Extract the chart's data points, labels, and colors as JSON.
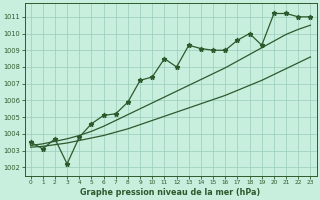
{
  "xlabel": "Graphe pression niveau de la mer (hPa)",
  "bg_color": "#c8eedd",
  "grid_color": "#99ccbb",
  "line_color": "#2d5a2d",
  "x_values": [
    0,
    1,
    2,
    3,
    4,
    5,
    6,
    7,
    8,
    9,
    10,
    11,
    12,
    13,
    14,
    15,
    16,
    17,
    18,
    19,
    20,
    21,
    22,
    23
  ],
  "y_main": [
    1003.5,
    1003.1,
    1003.7,
    1002.2,
    1003.8,
    1004.6,
    1005.1,
    1005.2,
    1005.9,
    1007.2,
    1007.4,
    1008.5,
    1008.0,
    1009.3,
    1009.1,
    1009.0,
    1009.0,
    1009.6,
    1010.0,
    1009.3,
    1011.2,
    1011.2,
    1011.0,
    1011.0
  ],
  "y_smooth1": [
    1003.2,
    1003.25,
    1003.35,
    1003.45,
    1003.6,
    1003.75,
    1003.9,
    1004.1,
    1004.3,
    1004.55,
    1004.8,
    1005.05,
    1005.3,
    1005.55,
    1005.8,
    1006.05,
    1006.3,
    1006.6,
    1006.9,
    1007.2,
    1007.55,
    1007.9,
    1008.25,
    1008.6
  ],
  "y_smooth2": [
    1003.3,
    1003.4,
    1003.55,
    1003.7,
    1003.9,
    1004.15,
    1004.45,
    1004.8,
    1005.15,
    1005.5,
    1005.85,
    1006.2,
    1006.55,
    1006.9,
    1007.25,
    1007.6,
    1007.95,
    1008.35,
    1008.75,
    1009.15,
    1009.55,
    1009.95,
    1010.25,
    1010.5
  ],
  "ylim_min": 1001.5,
  "ylim_max": 1011.8,
  "yticks": [
    1002,
    1003,
    1004,
    1005,
    1006,
    1007,
    1008,
    1009,
    1010,
    1011
  ],
  "xlim_min": -0.5,
  "xlim_max": 23.5,
  "xticks": [
    0,
    1,
    2,
    3,
    4,
    5,
    6,
    7,
    8,
    9,
    10,
    11,
    12,
    13,
    14,
    15,
    16,
    17,
    18,
    19,
    20,
    21,
    22,
    23
  ]
}
